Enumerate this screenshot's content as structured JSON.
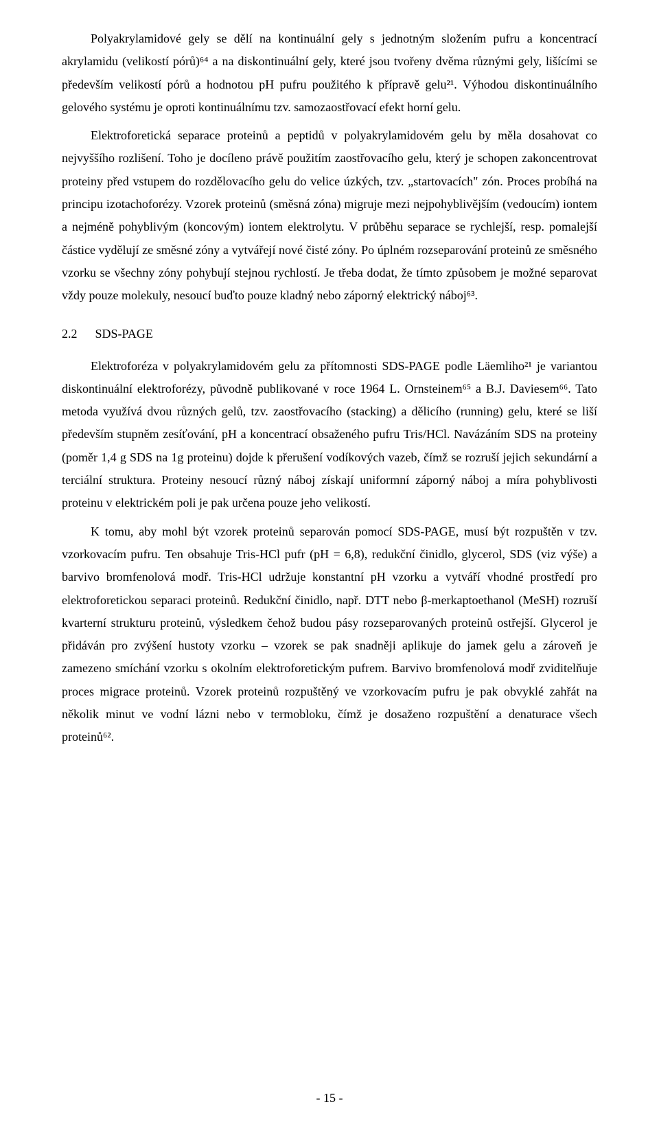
{
  "paragraphs": {
    "p1": "Polyakrylamidové gely se dělí na kontinuální gely s jednotným složením pufru a koncentrací akrylamidu (velikostí pórů)⁶⁴ a na diskontinuální gely, které jsou tvořeny dvěma různými gely, lišícími se především velikostí pórů a hodnotou pH pufru použitého k přípravě gelu²¹. Výhodou diskontinuálního gelového systému je oproti kontinuálnímu tzv. samozaostřovací efekt horní gelu.",
    "p2": "Elektroforetická separace proteinů a peptidů v polyakrylamidovém gelu by měla dosahovat co nejvyššího rozlišení. Toho je docíleno právě použitím zaostřovacího gelu, který je schopen zakoncentrovat proteiny před vstupem do rozdělovacího gelu do velice úzkých, tzv. „startovacích\" zón. Proces probíhá na principu izotachoforézy. Vzorek proteinů (směsná zóna) migruje mezi nejpohyblivějším (vedoucím) iontem a nejméně pohyblivým (koncovým) iontem elektrolytu. V průběhu separace se rychlejší, resp. pomalejší částice vydělují ze směsné zóny a vytvářejí nové čisté zóny. Po úplném rozseparování proteinů ze směsného vzorku se všechny zóny pohybují stejnou rychlostí. Je třeba dodat, že tímto způsobem je možné separovat vždy pouze molekuly, nesoucí buďto pouze kladný nebo záporný elektrický náboj⁶³.",
    "p3": "Elektroforéza v polyakrylamidovém gelu za přítomnosti SDS-PAGE podle Läemliho²¹ je variantou diskontinuální elektroforézy, původně publikované v roce 1964 L. Ornsteinem⁶⁵ a B.J. Daviesem⁶⁶. Tato metoda využívá dvou různých gelů, tzv. zaostřovacího (stacking) a dělicího (running) gelu, které se liší především stupněm zesíťování, pH a koncentrací obsaženého pufru Tris/HCl. Navázáním SDS na proteiny (poměr 1,4 g SDS na 1g proteinu) dojde k přerušení vodíkových vazeb, čímž se rozruší jejich sekundární a terciální struktura. Proteiny nesoucí různý náboj získají uniformní záporný náboj a míra pohyblivosti proteinu v elektrickém poli je pak určena pouze jeho velikostí.",
    "p4": "K tomu, aby mohl být vzorek proteinů separován pomocí SDS-PAGE, musí být rozpuštěn v tzv. vzorkovacím pufru. Ten obsahuje Tris-HCl pufr (pH = 6,8), redukční činidlo, glycerol, SDS (viz výše) a barvivo bromfenolová modř. Tris-HCl udržuje konstantní pH vzorku a vytváří vhodné prostředí pro elektroforetickou separaci proteinů. Redukční činidlo, např. DTT nebo β-merkaptoethanol (MeSH) rozruší kvarterní strukturu proteinů, výsledkem čehož budou pásy rozseparovaných proteinů ostřejší. Glycerol je přidáván pro zvýšení hustoty vzorku – vzorek se pak snadněji aplikuje do jamek gelu a zároveň je zamezeno smíchání vzorku s okolním elektroforetickým pufrem. Barvivo bromfenolová modř zviditelňuje proces migrace proteinů. Vzorek proteinů rozpuštěný ve vzorkovacím pufru je pak obvyklé zahřát na několik minut ve vodní lázni nebo v termobloku, čímž je dosaženo rozpuštění a denaturace všech proteinů⁶².",
    "section_num": "2.2",
    "section_title": "SDS-PAGE",
    "page_number": "- 15 -"
  }
}
